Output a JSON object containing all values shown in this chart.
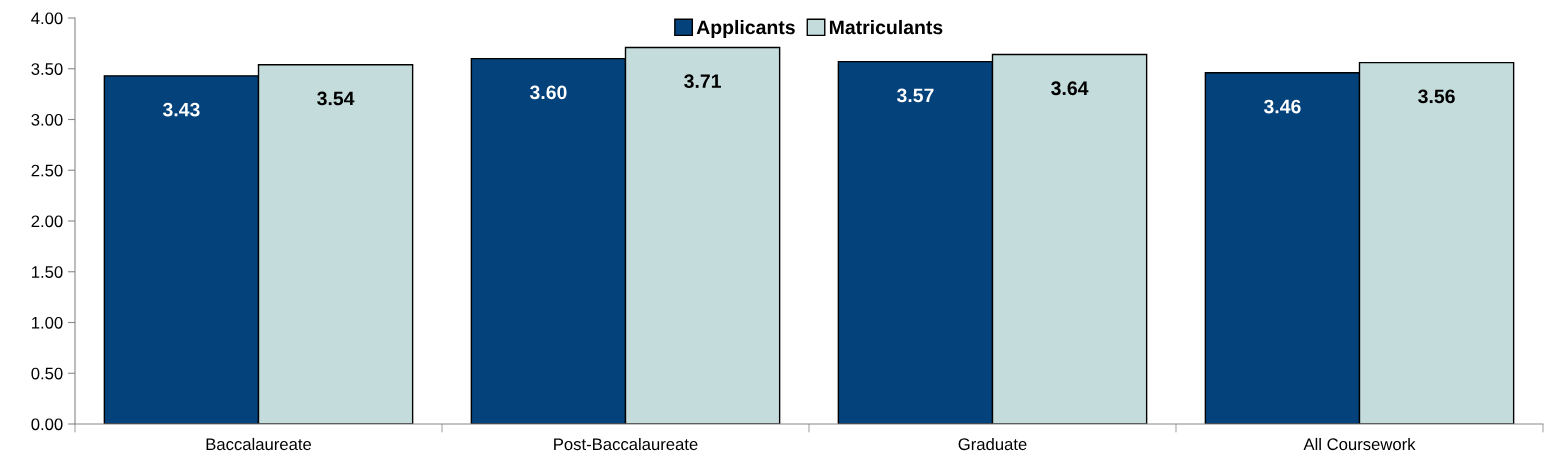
{
  "chart_data": {
    "type": "bar",
    "categories": [
      "Baccalaureate",
      "Post-Baccalaureate",
      "Graduate",
      "All Coursework"
    ],
    "series": [
      {
        "name": "Applicants",
        "color": "#03427a",
        "values": [
          3.43,
          3.6,
          3.57,
          3.46
        ],
        "value_labels": [
          "3.43",
          "3.60",
          "3.57",
          "3.46"
        ]
      },
      {
        "name": "Matriculants",
        "color": "#c5dcdc",
        "values": [
          3.54,
          3.71,
          3.64,
          3.56
        ],
        "value_labels": [
          "3.54",
          "3.71",
          "3.64",
          "3.56"
        ]
      }
    ],
    "ylim": [
      0,
      4
    ],
    "yticks": [
      {
        "value": 0,
        "label": "0.00"
      },
      {
        "value": 0.5,
        "label": "0.50"
      },
      {
        "value": 1,
        "label": "1.00"
      },
      {
        "value": 1.5,
        "label": "1.50"
      },
      {
        "value": 2,
        "label": "2.00"
      },
      {
        "value": 2.5,
        "label": "2.50"
      },
      {
        "value": 3,
        "label": "3.00"
      },
      {
        "value": 3.5,
        "label": "3.50"
      },
      {
        "value": 4,
        "label": "4.00"
      }
    ],
    "grid": false,
    "legend": "top"
  }
}
